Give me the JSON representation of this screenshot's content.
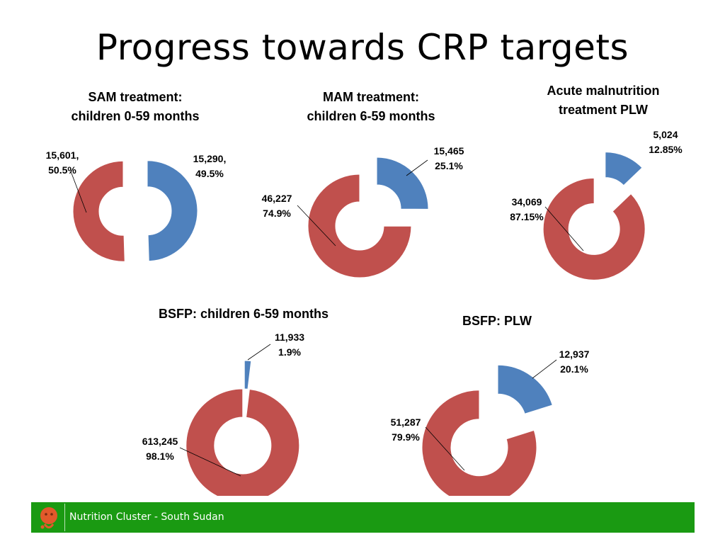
{
  "page": {
    "title": "Progress towards CRP targets",
    "footer_text": "Nutrition Cluster - South Sudan"
  },
  "colors": {
    "achieved": "#4f81bd",
    "remaining": "#c0504d",
    "footer": "#1a9a12"
  },
  "chart_data": [
    {
      "type": "pie",
      "style": "exploded doughnut",
      "title": [
        "SAM treatment:",
        "children 0-59 months"
      ],
      "categories": [
        "",
        ""
      ],
      "values": [
        15290,
        15601
      ],
      "percent": [
        49.5,
        50.5
      ],
      "labels": [
        [
          "15,290,",
          "49.5%"
        ],
        [
          "15,601,",
          "50.5%"
        ]
      ]
    },
    {
      "type": "pie",
      "style": "exploded doughnut",
      "title": [
        "MAM treatment:",
        "children 6-59 months"
      ],
      "categories": [
        "",
        ""
      ],
      "values": [
        15465,
        46227
      ],
      "percent": [
        25.1,
        74.9
      ],
      "labels": [
        [
          "15,465",
          "25.1%"
        ],
        [
          "46,227",
          "74.9%"
        ]
      ]
    },
    {
      "type": "pie",
      "style": "exploded doughnut",
      "title": [
        "Acute malnutrition",
        "treatment PLW"
      ],
      "categories": [
        "",
        ""
      ],
      "values": [
        5024,
        34069
      ],
      "percent": [
        12.85,
        87.15
      ],
      "labels": [
        [
          "5,024",
          "12.85%"
        ],
        [
          "34,069",
          "87.15%"
        ]
      ]
    },
    {
      "type": "pie",
      "style": "exploded doughnut",
      "title": [
        "BSFP: children 6-59 months"
      ],
      "categories": [
        "",
        ""
      ],
      "values": [
        11933,
        613245
      ],
      "percent": [
        1.9,
        98.1
      ],
      "labels": [
        [
          "11,933",
          "1.9%"
        ],
        [
          "613,245",
          "98.1%"
        ]
      ]
    },
    {
      "type": "pie",
      "style": "exploded doughnut",
      "title": [
        "BSFP: PLW"
      ],
      "categories": [
        "",
        ""
      ],
      "values": [
        12937,
        51287
      ],
      "percent": [
        20.1,
        79.9
      ],
      "labels": [
        [
          "12,937",
          "20.1%"
        ],
        [
          "51,287",
          "79.9%"
        ]
      ]
    }
  ]
}
